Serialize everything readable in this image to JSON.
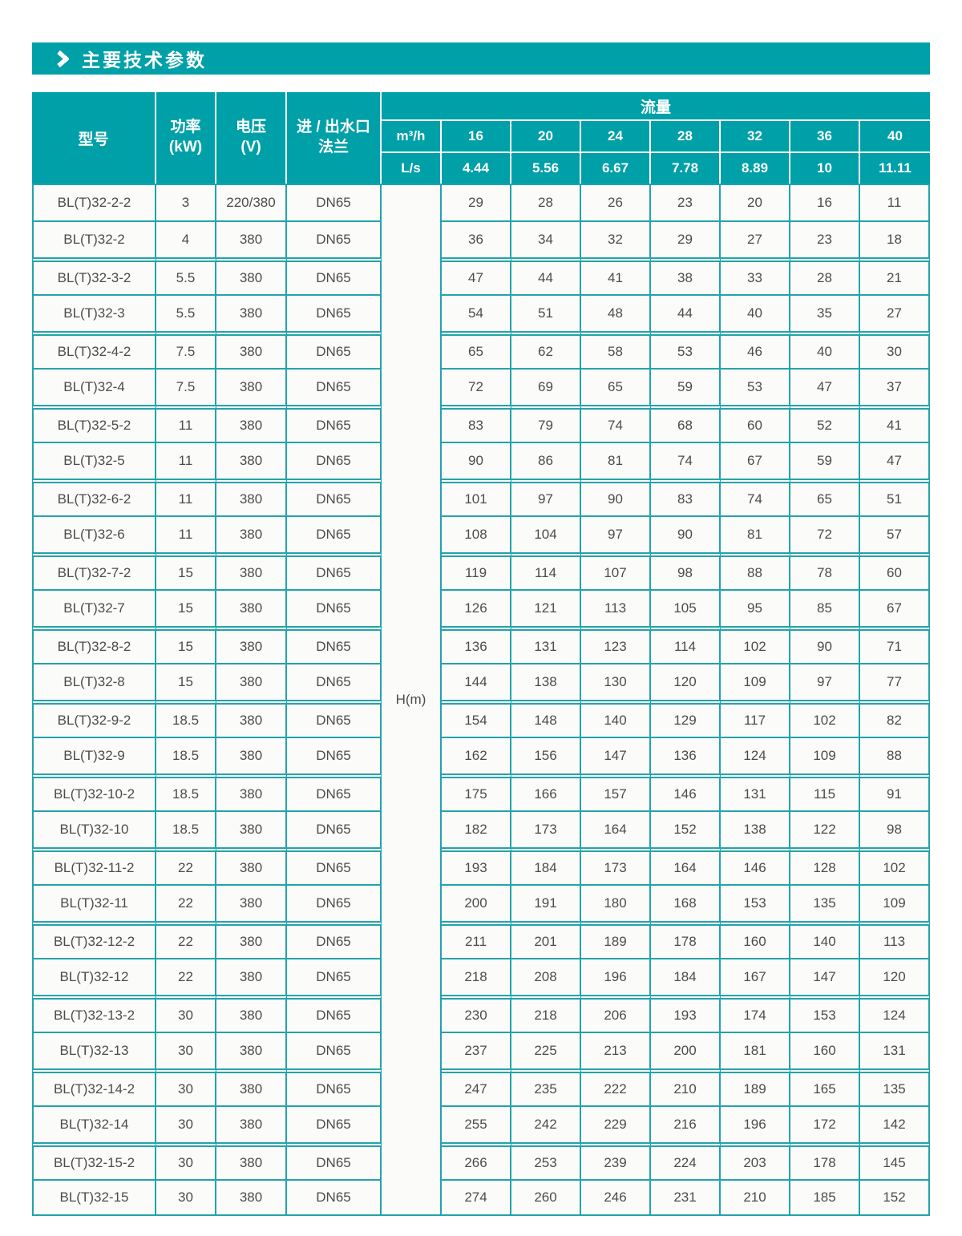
{
  "title": {
    "label": "主要技术参数"
  },
  "colors": {
    "teal": "#00a0a8",
    "line": "#23a3ac",
    "cell_bg": "#fbfbf9",
    "text": "#4c4c4c",
    "header_text": "#ffffff"
  },
  "table": {
    "header": {
      "model": "型号",
      "power": "功率\n(kW)",
      "voltage": "电压\n(V)",
      "flange": "进 / 出水口\n法兰",
      "flow_group": "流量",
      "m3h_label": "m³/h",
      "ls_label": "L/s",
      "head_unit": "H(m)",
      "flow_m3h": [
        "16",
        "20",
        "24",
        "28",
        "32",
        "36",
        "40"
      ],
      "flow_ls": [
        "4.44",
        "5.56",
        "6.67",
        "7.78",
        "8.89",
        "10",
        "11.11"
      ]
    },
    "rows": [
      {
        "model": "BL(T)32-2-2",
        "power": "3",
        "voltage": "220/380",
        "flange": "DN65",
        "heads": [
          29,
          28,
          26,
          23,
          20,
          16,
          11
        ]
      },
      {
        "model": "BL(T)32-2",
        "power": "4",
        "voltage": "380",
        "flange": "DN65",
        "heads": [
          36,
          34,
          32,
          29,
          27,
          23,
          18
        ]
      },
      {
        "model": "BL(T)32-3-2",
        "power": "5.5",
        "voltage": "380",
        "flange": "DN65",
        "heads": [
          47,
          44,
          41,
          38,
          33,
          28,
          21
        ]
      },
      {
        "model": "BL(T)32-3",
        "power": "5.5",
        "voltage": "380",
        "flange": "DN65",
        "heads": [
          54,
          51,
          48,
          44,
          40,
          35,
          27
        ]
      },
      {
        "model": "BL(T)32-4-2",
        "power": "7.5",
        "voltage": "380",
        "flange": "DN65",
        "heads": [
          65,
          62,
          58,
          53,
          46,
          40,
          30
        ]
      },
      {
        "model": "BL(T)32-4",
        "power": "7.5",
        "voltage": "380",
        "flange": "DN65",
        "heads": [
          72,
          69,
          65,
          59,
          53,
          47,
          37
        ]
      },
      {
        "model": "BL(T)32-5-2",
        "power": "11",
        "voltage": "380",
        "flange": "DN65",
        "heads": [
          83,
          79,
          74,
          68,
          60,
          52,
          41
        ]
      },
      {
        "model": "BL(T)32-5",
        "power": "11",
        "voltage": "380",
        "flange": "DN65",
        "heads": [
          90,
          86,
          81,
          74,
          67,
          59,
          47
        ]
      },
      {
        "model": "BL(T)32-6-2",
        "power": "11",
        "voltage": "380",
        "flange": "DN65",
        "heads": [
          101,
          97,
          90,
          83,
          74,
          65,
          51
        ]
      },
      {
        "model": "BL(T)32-6",
        "power": "11",
        "voltage": "380",
        "flange": "DN65",
        "heads": [
          108,
          104,
          97,
          90,
          81,
          72,
          57
        ]
      },
      {
        "model": "BL(T)32-7-2",
        "power": "15",
        "voltage": "380",
        "flange": "DN65",
        "heads": [
          119,
          114,
          107,
          98,
          88,
          78,
          60
        ]
      },
      {
        "model": "BL(T)32-7",
        "power": "15",
        "voltage": "380",
        "flange": "DN65",
        "heads": [
          126,
          121,
          113,
          105,
          95,
          85,
          67
        ]
      },
      {
        "model": "BL(T)32-8-2",
        "power": "15",
        "voltage": "380",
        "flange": "DN65",
        "heads": [
          136,
          131,
          123,
          114,
          102,
          90,
          71
        ]
      },
      {
        "model": "BL(T)32-8",
        "power": "15",
        "voltage": "380",
        "flange": "DN65",
        "heads": [
          144,
          138,
          130,
          120,
          109,
          97,
          77
        ]
      },
      {
        "model": "BL(T)32-9-2",
        "power": "18.5",
        "voltage": "380",
        "flange": "DN65",
        "heads": [
          154,
          148,
          140,
          129,
          117,
          102,
          82
        ]
      },
      {
        "model": "BL(T)32-9",
        "power": "18.5",
        "voltage": "380",
        "flange": "DN65",
        "heads": [
          162,
          156,
          147,
          136,
          124,
          109,
          88
        ]
      },
      {
        "model": "BL(T)32-10-2",
        "power": "18.5",
        "voltage": "380",
        "flange": "DN65",
        "heads": [
          175,
          166,
          157,
          146,
          131,
          115,
          91
        ]
      },
      {
        "model": "BL(T)32-10",
        "power": "18.5",
        "voltage": "380",
        "flange": "DN65",
        "heads": [
          182,
          173,
          164,
          152,
          138,
          122,
          98
        ]
      },
      {
        "model": "BL(T)32-11-2",
        "power": "22",
        "voltage": "380",
        "flange": "DN65",
        "heads": [
          193,
          184,
          173,
          164,
          146,
          128,
          102
        ]
      },
      {
        "model": "BL(T)32-11",
        "power": "22",
        "voltage": "380",
        "flange": "DN65",
        "heads": [
          200,
          191,
          180,
          168,
          153,
          135,
          109
        ]
      },
      {
        "model": "BL(T)32-12-2",
        "power": "22",
        "voltage": "380",
        "flange": "DN65",
        "heads": [
          211,
          201,
          189,
          178,
          160,
          140,
          113
        ]
      },
      {
        "model": "BL(T)32-12",
        "power": "22",
        "voltage": "380",
        "flange": "DN65",
        "heads": [
          218,
          208,
          196,
          184,
          167,
          147,
          120
        ]
      },
      {
        "model": "BL(T)32-13-2",
        "power": "30",
        "voltage": "380",
        "flange": "DN65",
        "heads": [
          230,
          218,
          206,
          193,
          174,
          153,
          124
        ]
      },
      {
        "model": "BL(T)32-13",
        "power": "30",
        "voltage": "380",
        "flange": "DN65",
        "heads": [
          237,
          225,
          213,
          200,
          181,
          160,
          131
        ]
      },
      {
        "model": "BL(T)32-14-2",
        "power": "30",
        "voltage": "380",
        "flange": "DN65",
        "heads": [
          247,
          235,
          222,
          210,
          189,
          165,
          135
        ]
      },
      {
        "model": "BL(T)32-14",
        "power": "30",
        "voltage": "380",
        "flange": "DN65",
        "heads": [
          255,
          242,
          229,
          216,
          196,
          172,
          142
        ]
      },
      {
        "model": "BL(T)32-15-2",
        "power": "30",
        "voltage": "380",
        "flange": "DN65",
        "heads": [
          266,
          253,
          239,
          224,
          203,
          178,
          145
        ]
      },
      {
        "model": "BL(T)32-15",
        "power": "30",
        "voltage": "380",
        "flange": "DN65",
        "heads": [
          274,
          260,
          246,
          231,
          210,
          185,
          152
        ]
      }
    ]
  }
}
